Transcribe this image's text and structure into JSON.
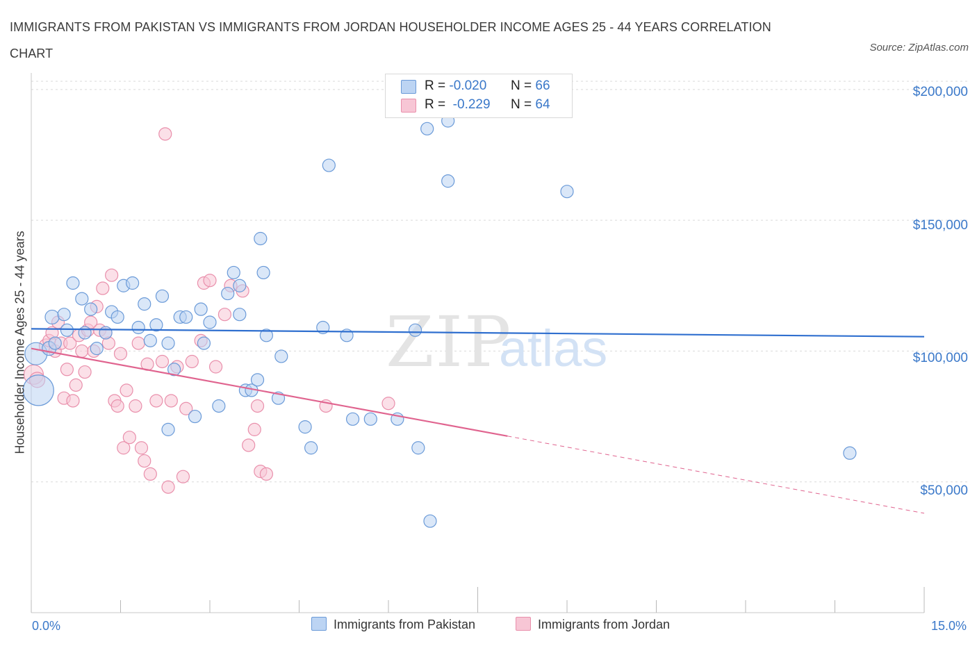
{
  "title": "IMMIGRANTS FROM PAKISTAN VS IMMIGRANTS FROM JORDAN HOUSEHOLDER INCOME AGES 25 - 44 YEARS CORRELATION CHART",
  "source": "Source: ZipAtlas.com",
  "watermark": {
    "zip": "ZIP",
    "atlas": "atlas"
  },
  "legend_top": {
    "rows": [
      {
        "r_label": "R =",
        "r_value": "-0.020",
        "n_label": "N =",
        "n_value": "66"
      },
      {
        "r_label": "R =",
        "r_value": "-0.229",
        "n_label": "N =",
        "n_value": "64"
      }
    ]
  },
  "colors": {
    "pakistan_fill": "#bcd4f3",
    "pakistan_stroke": "#6a9ad8",
    "pakistan_line": "#2f6fcf",
    "jordan_fill": "#f7c6d5",
    "jordan_stroke": "#e98fab",
    "jordan_line": "#e0648f",
    "tick_text": "#3a78c9",
    "grid": "#d9d9d9"
  },
  "chart_data": {
    "type": "scatter",
    "title": "IMMIGRANTS FROM PAKISTAN VS IMMIGRANTS FROM JORDAN HOUSEHOLDER INCOME AGES 25 - 44 YEARS CORRELATION CHART",
    "xlabel": "",
    "ylabel": "Householder Income Ages 25 - 44 years",
    "xlim": [
      0,
      15
    ],
    "ylim": [
      0,
      205000
    ],
    "x_tick_labels": [
      "0.0%",
      "15.0%"
    ],
    "y_ticks": [
      50000,
      100000,
      150000,
      200000
    ],
    "y_tick_labels": [
      "$50,000",
      "$100,000",
      "$150,000",
      "$200,000"
    ],
    "grid": true,
    "legend": "top-center",
    "series": [
      {
        "name": "Immigrants from Pakistan",
        "r": -0.02,
        "n": 66,
        "trend": {
          "x": [
            0,
            15
          ],
          "y": [
            108500,
            105500
          ],
          "style": "solid"
        },
        "points": [
          [
            0.08,
            99000,
            16
          ],
          [
            0.12,
            85000,
            22
          ],
          [
            0.3,
            101000,
            10
          ],
          [
            0.35,
            113000,
            10
          ],
          [
            0.4,
            103000,
            9
          ],
          [
            0.55,
            114000,
            9
          ],
          [
            0.6,
            108000,
            9
          ],
          [
            0.7,
            126000,
            9
          ],
          [
            0.85,
            120000,
            9
          ],
          [
            0.9,
            107000,
            9
          ],
          [
            1.0,
            116000,
            9
          ],
          [
            1.1,
            101000,
            9
          ],
          [
            1.25,
            107000,
            9
          ],
          [
            1.35,
            115000,
            9
          ],
          [
            1.45,
            113000,
            9
          ],
          [
            1.55,
            125000,
            9
          ],
          [
            1.7,
            126000,
            9
          ],
          [
            1.8,
            109000,
            9
          ],
          [
            1.9,
            118000,
            9
          ],
          [
            2.0,
            104000,
            9
          ],
          [
            2.1,
            110000,
            9
          ],
          [
            2.2,
            121000,
            9
          ],
          [
            2.3,
            103000,
            9
          ],
          [
            2.3,
            70000,
            9
          ],
          [
            2.4,
            93000,
            9
          ],
          [
            2.5,
            113000,
            9
          ],
          [
            2.6,
            113000,
            9
          ],
          [
            2.75,
            75000,
            9
          ],
          [
            2.85,
            116000,
            9
          ],
          [
            2.9,
            103000,
            9
          ],
          [
            3.0,
            111000,
            9
          ],
          [
            3.15,
            79000,
            9
          ],
          [
            3.3,
            122000,
            9
          ],
          [
            3.4,
            130000,
            9
          ],
          [
            3.5,
            125000,
            9
          ],
          [
            3.5,
            114000,
            9
          ],
          [
            3.6,
            85000,
            9
          ],
          [
            3.7,
            85000,
            9
          ],
          [
            3.8,
            89000,
            9
          ],
          [
            3.85,
            143000,
            9
          ],
          [
            3.9,
            130000,
            9
          ],
          [
            3.95,
            106000,
            9
          ],
          [
            4.15,
            82000,
            9
          ],
          [
            4.2,
            98000,
            9
          ],
          [
            4.6,
            71000,
            9
          ],
          [
            4.7,
            63000,
            9
          ],
          [
            4.9,
            109000,
            9
          ],
          [
            5.0,
            171000,
            9
          ],
          [
            5.3,
            106000,
            9
          ],
          [
            5.4,
            74000,
            9
          ],
          [
            5.7,
            74000,
            9
          ],
          [
            6.15,
            74000,
            9
          ],
          [
            6.45,
            108000,
            9
          ],
          [
            6.5,
            63000,
            9
          ],
          [
            6.65,
            185000,
            9
          ],
          [
            6.7,
            35000,
            9
          ],
          [
            7.0,
            188000,
            9
          ],
          [
            7.0,
            165000,
            9
          ],
          [
            9.0,
            161000,
            9
          ],
          [
            13.75,
            61000,
            9
          ]
        ]
      },
      {
        "name": "Immigrants from Jordan",
        "r": -0.229,
        "n": 64,
        "trend": {
          "x": [
            0,
            8.0,
            15
          ],
          "y": [
            101000,
            67500,
            38000
          ],
          "style": "solid-then-dashed"
        },
        "points": [
          [
            0.04,
            91000,
            14
          ],
          [
            0.1,
            89000,
            11
          ],
          [
            0.25,
            102000,
            10
          ],
          [
            0.3,
            104000,
            9
          ],
          [
            0.35,
            107000,
            9
          ],
          [
            0.4,
            100000,
            9
          ],
          [
            0.45,
            111000,
            9
          ],
          [
            0.5,
            103000,
            9
          ],
          [
            0.55,
            82000,
            9
          ],
          [
            0.6,
            93000,
            9
          ],
          [
            0.65,
            103000,
            9
          ],
          [
            0.7,
            81000,
            9
          ],
          [
            0.75,
            87000,
            9
          ],
          [
            0.8,
            106000,
            9
          ],
          [
            0.85,
            100000,
            9
          ],
          [
            0.9,
            92000,
            9
          ],
          [
            0.95,
            108000,
            9
          ],
          [
            1.0,
            111000,
            9
          ],
          [
            1.05,
            100000,
            9
          ],
          [
            1.1,
            117000,
            9
          ],
          [
            1.15,
            108000,
            9
          ],
          [
            1.2,
            124000,
            9
          ],
          [
            1.25,
            107000,
            9
          ],
          [
            1.3,
            103000,
            9
          ],
          [
            1.35,
            129000,
            9
          ],
          [
            1.4,
            81000,
            9
          ],
          [
            1.45,
            79000,
            9
          ],
          [
            1.5,
            99000,
            9
          ],
          [
            1.55,
            63000,
            9
          ],
          [
            1.6,
            85000,
            9
          ],
          [
            1.65,
            67000,
            9
          ],
          [
            1.75,
            79000,
            9
          ],
          [
            1.8,
            103000,
            9
          ],
          [
            1.85,
            63000,
            9
          ],
          [
            1.9,
            58000,
            9
          ],
          [
            1.95,
            95000,
            9
          ],
          [
            2.0,
            53000,
            9
          ],
          [
            2.1,
            81000,
            9
          ],
          [
            2.2,
            96000,
            9
          ],
          [
            2.25,
            183000,
            9
          ],
          [
            2.3,
            48000,
            9
          ],
          [
            2.35,
            81000,
            9
          ],
          [
            2.45,
            94000,
            9
          ],
          [
            2.55,
            52000,
            9
          ],
          [
            2.6,
            78000,
            9
          ],
          [
            2.7,
            96000,
            9
          ],
          [
            2.85,
            104000,
            9
          ],
          [
            2.9,
            126000,
            9
          ],
          [
            3.0,
            127000,
            9
          ],
          [
            3.1,
            94000,
            9
          ],
          [
            3.25,
            114000,
            9
          ],
          [
            3.35,
            125000,
            9
          ],
          [
            3.55,
            123000,
            9
          ],
          [
            3.65,
            64000,
            9
          ],
          [
            3.75,
            70000,
            9
          ],
          [
            3.8,
            79000,
            9
          ],
          [
            3.85,
            54000,
            9
          ],
          [
            3.95,
            53000,
            9
          ],
          [
            4.95,
            79000,
            9
          ],
          [
            6.0,
            80000,
            9
          ]
        ]
      }
    ]
  },
  "legend_bottom": [
    {
      "label": "Immigrants from Pakistan"
    },
    {
      "label": "Immigrants from Jordan"
    }
  ]
}
